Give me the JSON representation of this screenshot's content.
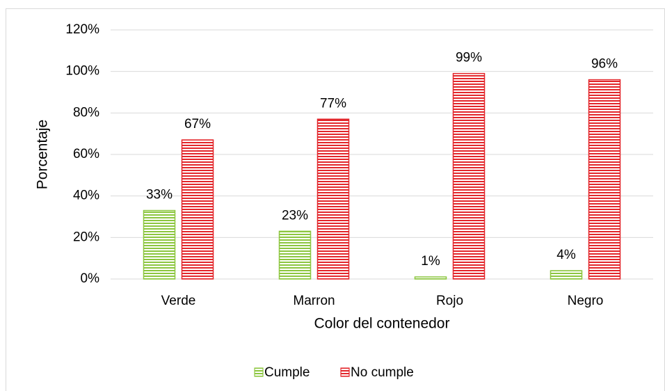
{
  "chart_data": {
    "type": "bar",
    "categories": [
      "Verde",
      "Marron",
      "Rojo",
      "Negro"
    ],
    "series": [
      {
        "name": "Cumple",
        "color": "#8cc63f",
        "values": [
          33,
          23,
          1,
          4
        ],
        "value_labels": [
          "33%",
          "23%",
          "1%",
          "4%"
        ]
      },
      {
        "name": "No cumple",
        "color": "#e3262b",
        "values": [
          67,
          77,
          99,
          96
        ],
        "value_labels": [
          "67%",
          "77%",
          "99%",
          "96%"
        ]
      }
    ],
    "x_label": "Color del contenedor",
    "y_label": "Porcentaje",
    "ylim": [
      0,
      120
    ],
    "yticks": [
      {
        "value": 0,
        "label": "0%"
      },
      {
        "value": 20,
        "label": "20%"
      },
      {
        "value": 40,
        "label": "40%"
      },
      {
        "value": 60,
        "label": "60%"
      },
      {
        "value": 80,
        "label": "80%"
      },
      {
        "value": 100,
        "label": "100%"
      },
      {
        "value": 120,
        "label": "120%"
      }
    ],
    "grid": true,
    "legend": "bottom"
  }
}
